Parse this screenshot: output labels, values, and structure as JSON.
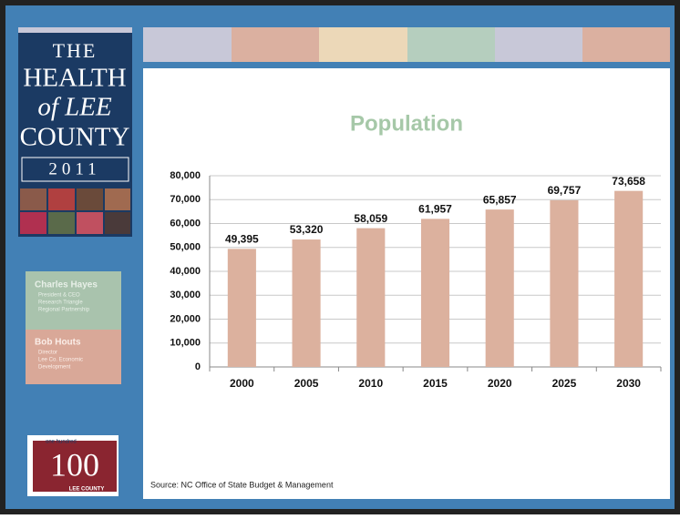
{
  "sidebar": {
    "logo": [
      "THE",
      "HEALTH",
      "of LEE",
      "COUNTY",
      "2011"
    ],
    "speakers": [
      {
        "name": "Charles Hayes",
        "lines": [
          "President & CEO",
          "Research Triangle",
          "Regional Partnership"
        ]
      },
      {
        "name": "Bob Houts",
        "lines": [
          "Director",
          "Lee Co. Economic",
          "Development"
        ]
      }
    ],
    "badge": {
      "top": "one hundred",
      "number": "100",
      "bottom": "LEE COUNTY"
    }
  },
  "source": "Source: NC Office of State Budget & Management",
  "chart_data": {
    "type": "bar",
    "title": "Population",
    "categories": [
      "2000",
      "2005",
      "2010",
      "2015",
      "2020",
      "2025",
      "2030"
    ],
    "values": [
      49395,
      53320,
      58059,
      61957,
      65857,
      69757,
      73658
    ],
    "value_labels": [
      "49,395",
      "53,320",
      "58,059",
      "61,957",
      "65,857",
      "69,757",
      "73,658"
    ],
    "color": "#dcb19e",
    "ylim": [
      0,
      80000
    ],
    "yticks": [
      0,
      {
        "value": 10000,
        "label": "10,000"
      },
      {
        "value": 20000,
        "label": "20,000"
      },
      {
        "value": 30000,
        "label": "30,000"
      },
      {
        "value": 40000,
        "label": "40,000"
      },
      {
        "value": 50000,
        "label": "50,000"
      },
      {
        "value": 60000,
        "label": "60,000"
      },
      {
        "value": 70000,
        "label": "70,000"
      },
      {
        "value": 80000,
        "label": "80,000"
      }
    ],
    "grid": true
  }
}
